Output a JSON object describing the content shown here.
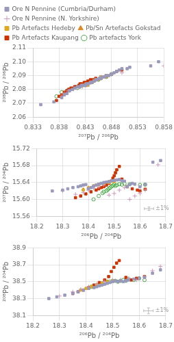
{
  "chart_data": [
    {
      "type": "scatter",
      "xlabel": "²⁰⁷Pb / ²⁰⁶Pb",
      "ylabel": "²⁰⁸Pb / ²⁰⁶Pb",
      "xlim": [
        0.833,
        0.858
      ],
      "ylim": [
        2.06,
        2.11
      ],
      "xticks": [
        0.833,
        0.838,
        0.843,
        0.848,
        0.853,
        0.858
      ],
      "yticks": [
        2.06,
        2.07,
        2.08,
        2.09,
        {
          "value": 2.1,
          "label": "2.10"
        },
        2.11
      ],
      "grid": true,
      "legend": "top",
      "series": [
        {
          "name": "Ore N Pennine (Cumbria/Durham)",
          "color": "#9999bb",
          "marker": "square",
          "x": [
            0.8345,
            0.837,
            0.8385,
            0.839,
            0.8395,
            0.84,
            0.8405,
            0.841,
            0.8415,
            0.842,
            0.8423,
            0.8427,
            0.843,
            0.8432,
            0.8435,
            0.844,
            0.8443,
            0.8447,
            0.845,
            0.8453,
            0.8457,
            0.846,
            0.8463,
            0.8467,
            0.847,
            0.8475,
            0.848,
            0.8485,
            0.849,
            0.8495,
            0.85,
            0.851,
            0.8515,
            0.8555,
            0.857
          ],
          "values": [
            2.069,
            2.071,
            2.074,
            2.076,
            2.077,
            2.079,
            2.08,
            2.081,
            2.082,
            2.082,
            2.083,
            2.083,
            2.083,
            2.084,
            2.084,
            2.085,
            2.085,
            2.086,
            2.087,
            2.087,
            2.088,
            2.088,
            2.089,
            2.089,
            2.09,
            2.09,
            2.091,
            2.092,
            2.093,
            2.094,
            2.095,
            2.095,
            2.096,
            2.097,
            2.1
          ]
        },
        {
          "name": "Ore N Pennine (N. Yorkshire)",
          "color": "#cc99bb",
          "marker": "plus",
          "x": [
            0.8385,
            0.839,
            0.8397,
            0.84,
            0.8408,
            0.8415,
            0.842,
            0.8425,
            0.843,
            0.8433,
            0.8437,
            0.844,
            0.8445,
            0.845,
            0.846,
            0.848,
            0.85,
            0.858
          ],
          "values": [
            2.075,
            2.077,
            2.079,
            2.079,
            2.08,
            2.081,
            2.082,
            2.082,
            2.083,
            2.083,
            2.084,
            2.085,
            2.086,
            2.087,
            2.089,
            2.091,
            2.092,
            2.097
          ]
        },
        {
          "name": "Pb Artefacts Hedeby",
          "color": "#ddaa22",
          "marker": "square",
          "x": [
            0.8435,
            0.844,
            0.8443,
            0.8447,
            0.845,
            0.8453,
            0.846,
            0.8465,
            0.847
          ],
          "values": [
            2.083,
            2.085,
            2.085,
            2.086,
            2.087,
            2.087,
            2.089,
            2.089,
            2.09
          ]
        },
        {
          "name": "Pb/Sn Artefacts Gokstad",
          "color": "#dd8822",
          "marker": "triangle",
          "x": [
            0.8425,
            0.843,
            0.8435,
            0.844,
            0.8445,
            0.845,
            0.8455,
            0.846,
            0.847,
            0.848
          ],
          "values": [
            2.083,
            2.084,
            2.084,
            2.085,
            2.086,
            2.087,
            2.087,
            2.088,
            2.089,
            2.091
          ]
        },
        {
          "name": "Pb Artefacts Kaupang",
          "color": "#cc3300",
          "marker": "square",
          "x": [
            0.8375,
            0.838,
            0.8385,
            0.839,
            0.8395,
            0.8398,
            0.84,
            0.8403,
            0.8408,
            0.841,
            0.8413,
            0.8418,
            0.842,
            0.8423,
            0.8428,
            0.843,
            0.8435,
            0.844,
            0.8445,
            0.845,
            0.846,
            0.847,
            0.848,
            0.849,
            0.85
          ],
          "values": [
            2.072,
            2.075,
            2.076,
            2.078,
            2.079,
            2.08,
            2.08,
            2.081,
            2.081,
            2.082,
            2.082,
            2.083,
            2.084,
            2.084,
            2.085,
            2.085,
            2.086,
            2.087,
            2.087,
            2.088,
            2.089,
            2.09,
            2.091,
            2.093,
            2.094
          ]
        },
        {
          "name": "Pb artefacts York",
          "color": "#44aa44",
          "marker": "open_circle",
          "x": [
            0.8375,
            0.8385,
            0.8395,
            0.84,
            0.8415,
            0.842,
            0.8425,
            0.843,
            0.8435,
            0.844,
            0.8445,
            0.845,
            0.8455,
            0.846,
            0.847,
            0.848
          ],
          "values": [
            2.075,
            2.078,
            2.079,
            2.08,
            2.081,
            2.082,
            2.083,
            2.083,
            2.084,
            2.085,
            2.086,
            2.087,
            2.087,
            2.088,
            2.089,
            2.091
          ]
        }
      ]
    },
    {
      "type": "scatter",
      "xlabel": "²⁰⁶Pb / ²⁰⁴Pb",
      "ylabel": "²⁰⁷Pb / ²⁰⁴Pb",
      "xlim": [
        18.2,
        18.7
      ],
      "ylim": [
        15.56,
        15.72
      ],
      "xticks": [
        18.2,
        18.3,
        18.4,
        18.5,
        18.6,
        18.7
      ],
      "yticks": [
        15.56,
        {
          "value": 15.6,
          "label": "15.60"
        },
        15.64,
        15.68,
        15.72
      ],
      "grid": true,
      "error_bar": {
        "x": 18.635,
        "y": 15.578,
        "dx": 0.018,
        "dy": 0.004
      },
      "annotation": "±1%",
      "series": [
        {
          "name": "Ore N Pennine (Cumbria/Durham)",
          "color": "#9999bb",
          "marker": "square",
          "x": [
            18.26,
            18.3,
            18.32,
            18.34,
            18.36,
            18.37,
            18.38,
            18.39,
            18.4,
            18.41,
            18.42,
            18.43,
            18.44,
            18.45,
            18.46,
            18.47,
            18.48,
            18.49,
            18.5,
            18.51,
            18.52,
            18.53,
            18.54,
            18.55,
            18.56,
            18.57,
            18.58,
            18.6,
            18.62,
            18.65,
            18.68
          ],
          "values": [
            15.62,
            15.622,
            15.625,
            15.628,
            15.63,
            15.632,
            15.634,
            15.635,
            15.625,
            15.628,
            15.631,
            15.634,
            15.636,
            15.638,
            15.64,
            15.641,
            15.642,
            15.644,
            15.645,
            15.646,
            15.647,
            15.644,
            15.643,
            15.63,
            15.635,
            15.638,
            15.636,
            15.63,
            15.635,
            15.688,
            15.692
          ]
        },
        {
          "name": "Ore N Pennine (N. Yorkshire)",
          "color": "#cc99bb",
          "marker": "plus",
          "x": [
            18.3,
            18.35,
            18.38,
            18.4,
            18.42,
            18.44,
            18.46,
            18.48,
            18.5,
            18.52,
            18.54,
            18.56,
            18.58,
            18.6,
            18.62,
            18.67
          ],
          "values": [
            15.62,
            15.612,
            15.616,
            15.622,
            15.626,
            15.63,
            15.634,
            15.61,
            15.614,
            15.622,
            15.628,
            15.6,
            15.608,
            15.614,
            15.622,
            15.682
          ]
        },
        {
          "name": "Pb Artefacts Hedeby",
          "color": "#ddaa22",
          "marker": "square",
          "x": [
            18.38,
            18.4,
            18.42,
            18.44,
            18.46,
            18.48,
            18.5
          ],
          "values": [
            15.622,
            15.627,
            15.632,
            15.636,
            15.638,
            15.64,
            15.642
          ]
        },
        {
          "name": "Pb/Sn Artefacts Gokstad",
          "color": "#dd8822",
          "marker": "triangle",
          "x": [
            18.38,
            18.4,
            18.42,
            18.44,
            18.46,
            18.48
          ],
          "values": [
            15.624,
            15.628,
            15.632,
            15.635,
            15.638,
            15.642
          ]
        },
        {
          "name": "Pb Artefacts Kaupang",
          "color": "#cc3300",
          "marker": "square",
          "x": [
            18.35,
            18.37,
            18.39,
            18.41,
            18.43,
            18.44,
            18.45,
            18.46,
            18.47,
            18.48,
            18.49,
            18.495,
            18.5,
            18.505,
            18.51,
            18.52,
            18.53,
            18.55,
            18.57,
            18.59,
            18.6,
            18.62
          ],
          "values": [
            15.604,
            15.608,
            15.613,
            15.618,
            15.622,
            15.625,
            15.628,
            15.63,
            15.634,
            15.638,
            15.644,
            15.65,
            15.656,
            15.663,
            15.67,
            15.678,
            15.648,
            15.63,
            15.625,
            15.622,
            15.62,
            15.624
          ]
        },
        {
          "name": "Pb artefacts York",
          "color": "#44aa44",
          "marker": "open_circle",
          "x": [
            18.42,
            18.44,
            18.455,
            18.46,
            18.47,
            18.475,
            18.48,
            18.485,
            18.49,
            18.495,
            18.5,
            18.505,
            18.51,
            18.52,
            18.53,
            18.54,
            18.56,
            18.6,
            18.62
          ],
          "values": [
            15.6,
            15.608,
            15.615,
            15.618,
            15.62,
            15.623,
            15.626,
            15.628,
            15.631,
            15.633,
            15.635,
            15.632,
            15.634,
            15.636,
            15.635,
            15.637,
            15.636,
            15.634,
            15.635
          ]
        }
      ]
    },
    {
      "type": "scatter",
      "xlabel": "²⁰⁶Pb / ²⁰⁴Pb",
      "ylabel": "²⁰⁸Pb / ²⁰⁴Pb",
      "xlim": [
        18.2,
        18.7
      ],
      "ylim": [
        38.1,
        38.9
      ],
      "xticks": [
        18.2,
        18.3,
        18.4,
        18.5,
        18.6,
        18.7
      ],
      "yticks": [
        38.1,
        38.3,
        38.5,
        38.7,
        38.9
      ],
      "grid": true,
      "error_bar": {
        "x": 18.635,
        "y": 38.155,
        "dx": 0.018,
        "dy": 0.035
      },
      "annotation": "±1%",
      "series": [
        {
          "name": "Ore N Pennine (Cumbria/Durham)",
          "color": "#9999bb",
          "marker": "square",
          "x": [
            18.26,
            18.29,
            18.32,
            18.35,
            18.37,
            18.39,
            18.41,
            18.43,
            18.44,
            18.45,
            18.46,
            18.47,
            18.48,
            18.49,
            18.5,
            18.51,
            18.52,
            18.53,
            18.54,
            18.55,
            18.56,
            18.58,
            18.6,
            18.62,
            18.65,
            18.68
          ],
          "values": [
            38.3,
            38.32,
            38.34,
            38.36,
            38.38,
            38.4,
            38.42,
            38.43,
            38.44,
            38.45,
            38.46,
            38.47,
            38.48,
            38.49,
            38.5,
            38.51,
            38.5,
            38.51,
            38.5,
            38.51,
            38.52,
            38.53,
            38.54,
            38.55,
            38.6,
            38.64
          ]
        },
        {
          "name": "Ore N Pennine (N. Yorkshire)",
          "color": "#cc99bb",
          "marker": "plus",
          "x": [
            18.3,
            18.35,
            18.38,
            18.41,
            18.44,
            18.47,
            18.5,
            18.53,
            18.56,
            18.59,
            18.62,
            18.65,
            18.68
          ],
          "values": [
            38.33,
            38.38,
            38.41,
            38.44,
            38.47,
            38.5,
            38.52,
            38.52,
            38.54,
            38.52,
            38.56,
            38.63,
            38.68
          ]
        },
        {
          "name": "Pb Artefacts Hedeby",
          "color": "#ddaa22",
          "marker": "square",
          "x": [
            18.38,
            18.4,
            18.42,
            18.44,
            18.46,
            18.48,
            18.5
          ],
          "values": [
            38.4,
            38.42,
            38.44,
            38.46,
            38.48,
            38.5,
            38.51
          ]
        },
        {
          "name": "Pb/Sn Artefacts Gokstad",
          "color": "#dd8822",
          "marker": "triangle",
          "x": [
            18.38,
            18.4,
            18.42,
            18.44,
            18.46,
            18.48
          ],
          "values": [
            38.4,
            38.42,
            38.44,
            38.46,
            38.48,
            38.5
          ]
        },
        {
          "name": "Pb Artefacts Kaupang",
          "color": "#cc3300",
          "marker": "square",
          "x": [
            18.35,
            18.37,
            18.39,
            18.41,
            18.43,
            18.45,
            18.47,
            18.485,
            18.495,
            18.505,
            18.515,
            18.525,
            18.55,
            18.57,
            18.59,
            18.62
          ],
          "values": [
            38.36,
            38.38,
            38.4,
            38.43,
            38.46,
            38.49,
            38.52,
            38.56,
            38.62,
            38.67,
            38.72,
            38.75,
            38.55,
            38.52,
            38.54,
            38.56
          ]
        },
        {
          "name": "Pb artefacts York",
          "color": "#44aa44",
          "marker": "open_circle",
          "x": [
            18.42,
            18.44,
            18.455,
            18.46,
            18.47,
            18.48,
            18.49,
            18.5,
            18.51,
            18.52,
            18.53,
            18.54,
            18.55,
            18.56,
            18.58,
            18.6,
            18.62
          ],
          "values": [
            38.44,
            38.46,
            38.47,
            38.48,
            38.49,
            38.5,
            38.5,
            38.51,
            38.51,
            38.5,
            38.51,
            38.52,
            38.51,
            38.53,
            38.52,
            38.54,
            38.52
          ]
        }
      ]
    }
  ]
}
